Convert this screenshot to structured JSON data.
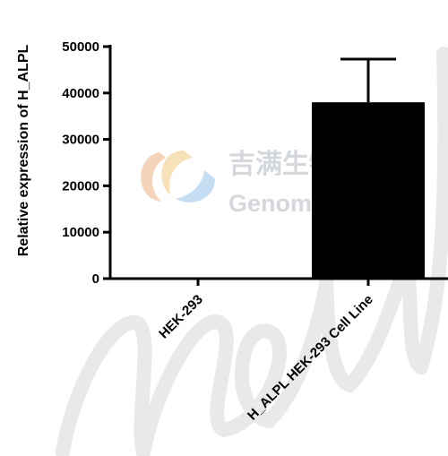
{
  "chart_data": {
    "type": "bar",
    "categories": [
      "HEK-293",
      "H_ALPL HEK-293 Cell Line"
    ],
    "values": [
      0,
      38000
    ],
    "error_upper": [
      0,
      9300
    ],
    "ylabel": "Relative expression of H_ALPL",
    "xlabel": "",
    "ylim": [
      0,
      50000
    ],
    "yticks": [
      0,
      10000,
      20000,
      30000,
      40000,
      50000
    ],
    "bar_color": "#000000"
  },
  "watermark": {
    "company_cn": "吉满生物科技",
    "company_en": "Genomeditech",
    "script": "meibio",
    "logo_colors": [
      "#e9573f",
      "#f5a623",
      "#3d8fd8"
    ]
  }
}
